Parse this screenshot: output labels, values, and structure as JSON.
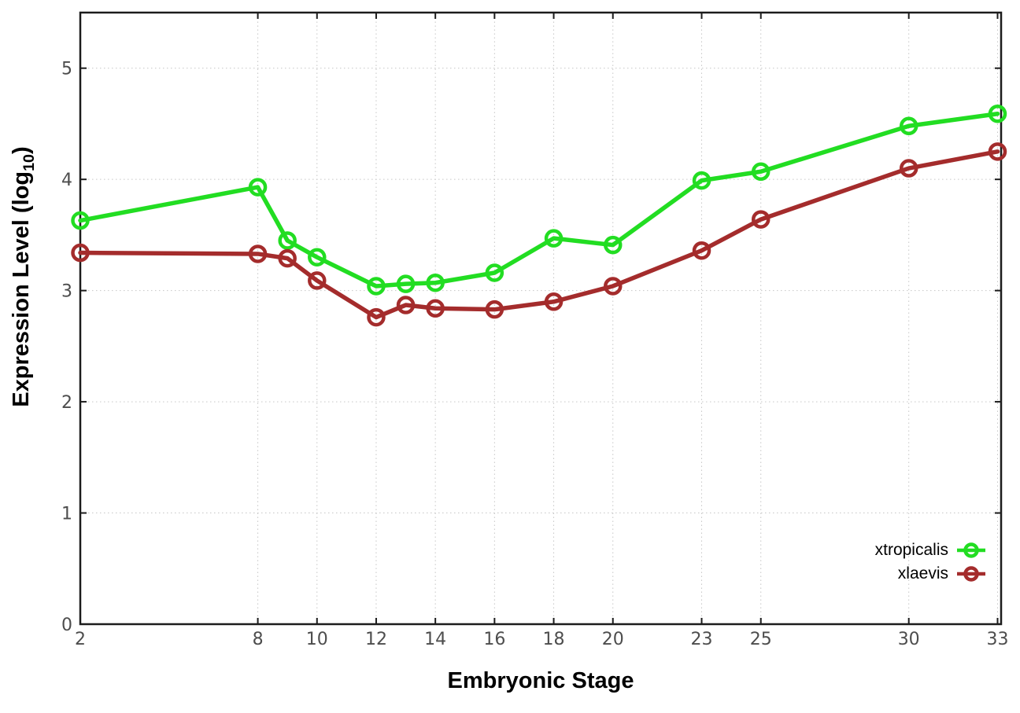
{
  "chart_data": {
    "type": "line",
    "title": "",
    "xlabel": "Embryonic Stage",
    "ylabel": "Expression Level (log10)",
    "ylabel_main": "Expression Level (log",
    "ylabel_sub": "10",
    "ylabel_end": ")",
    "x": [
      2,
      8,
      9,
      10,
      12,
      13,
      14,
      16,
      18,
      20,
      23,
      25,
      30,
      33
    ],
    "series": [
      {
        "name": "xtropicalis",
        "color": "#22dd22",
        "values": [
          3.63,
          3.93,
          3.45,
          3.3,
          3.04,
          3.06,
          3.07,
          3.16,
          3.47,
          3.41,
          3.99,
          4.07,
          4.48,
          4.59
        ]
      },
      {
        "name": "xlaevis",
        "color": "#a42c2c",
        "values": [
          3.34,
          3.33,
          3.29,
          3.09,
          2.76,
          2.87,
          2.84,
          2.83,
          2.9,
          3.04,
          3.36,
          3.64,
          4.1,
          4.25
        ]
      }
    ],
    "xticks": [
      2,
      8,
      10,
      12,
      14,
      16,
      18,
      20,
      23,
      25,
      30,
      33
    ],
    "yticks": [
      0,
      1,
      2,
      3,
      4,
      5
    ],
    "xlim": [
      2,
      33.12
    ],
    "ylim": [
      0,
      5.5
    ],
    "grid": true,
    "legend_position": "bottom-right",
    "marker": "open-circle"
  }
}
